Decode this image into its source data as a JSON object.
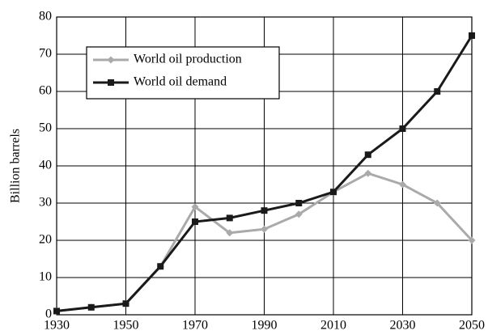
{
  "chart_data": {
    "type": "line",
    "ylabel": "Billion barrels",
    "x": [
      1930,
      1940,
      1950,
      1960,
      1970,
      1980,
      1990,
      2000,
      2010,
      2020,
      2030,
      2040,
      2050
    ],
    "series": [
      {
        "name": "World oil production",
        "color": "#aaaaaa",
        "marker": "diamond",
        "values": [
          1,
          2,
          3,
          13,
          29,
          22,
          23,
          27,
          33,
          38,
          35,
          30,
          20
        ]
      },
      {
        "name": "World oil demand",
        "color": "#1a1a1a",
        "marker": "square",
        "values": [
          1,
          2,
          3,
          13,
          25,
          26,
          28,
          30,
          33,
          43,
          50,
          60,
          75
        ]
      }
    ],
    "xlim": [
      1930,
      2050
    ],
    "xticks": [
      1930,
      1950,
      1970,
      1990,
      2010,
      2030,
      2050
    ],
    "ylim": [
      0,
      80
    ],
    "yticks": [
      0,
      10,
      20,
      30,
      40,
      50,
      60,
      70,
      80
    ],
    "grid": true,
    "legend": "upper left"
  }
}
